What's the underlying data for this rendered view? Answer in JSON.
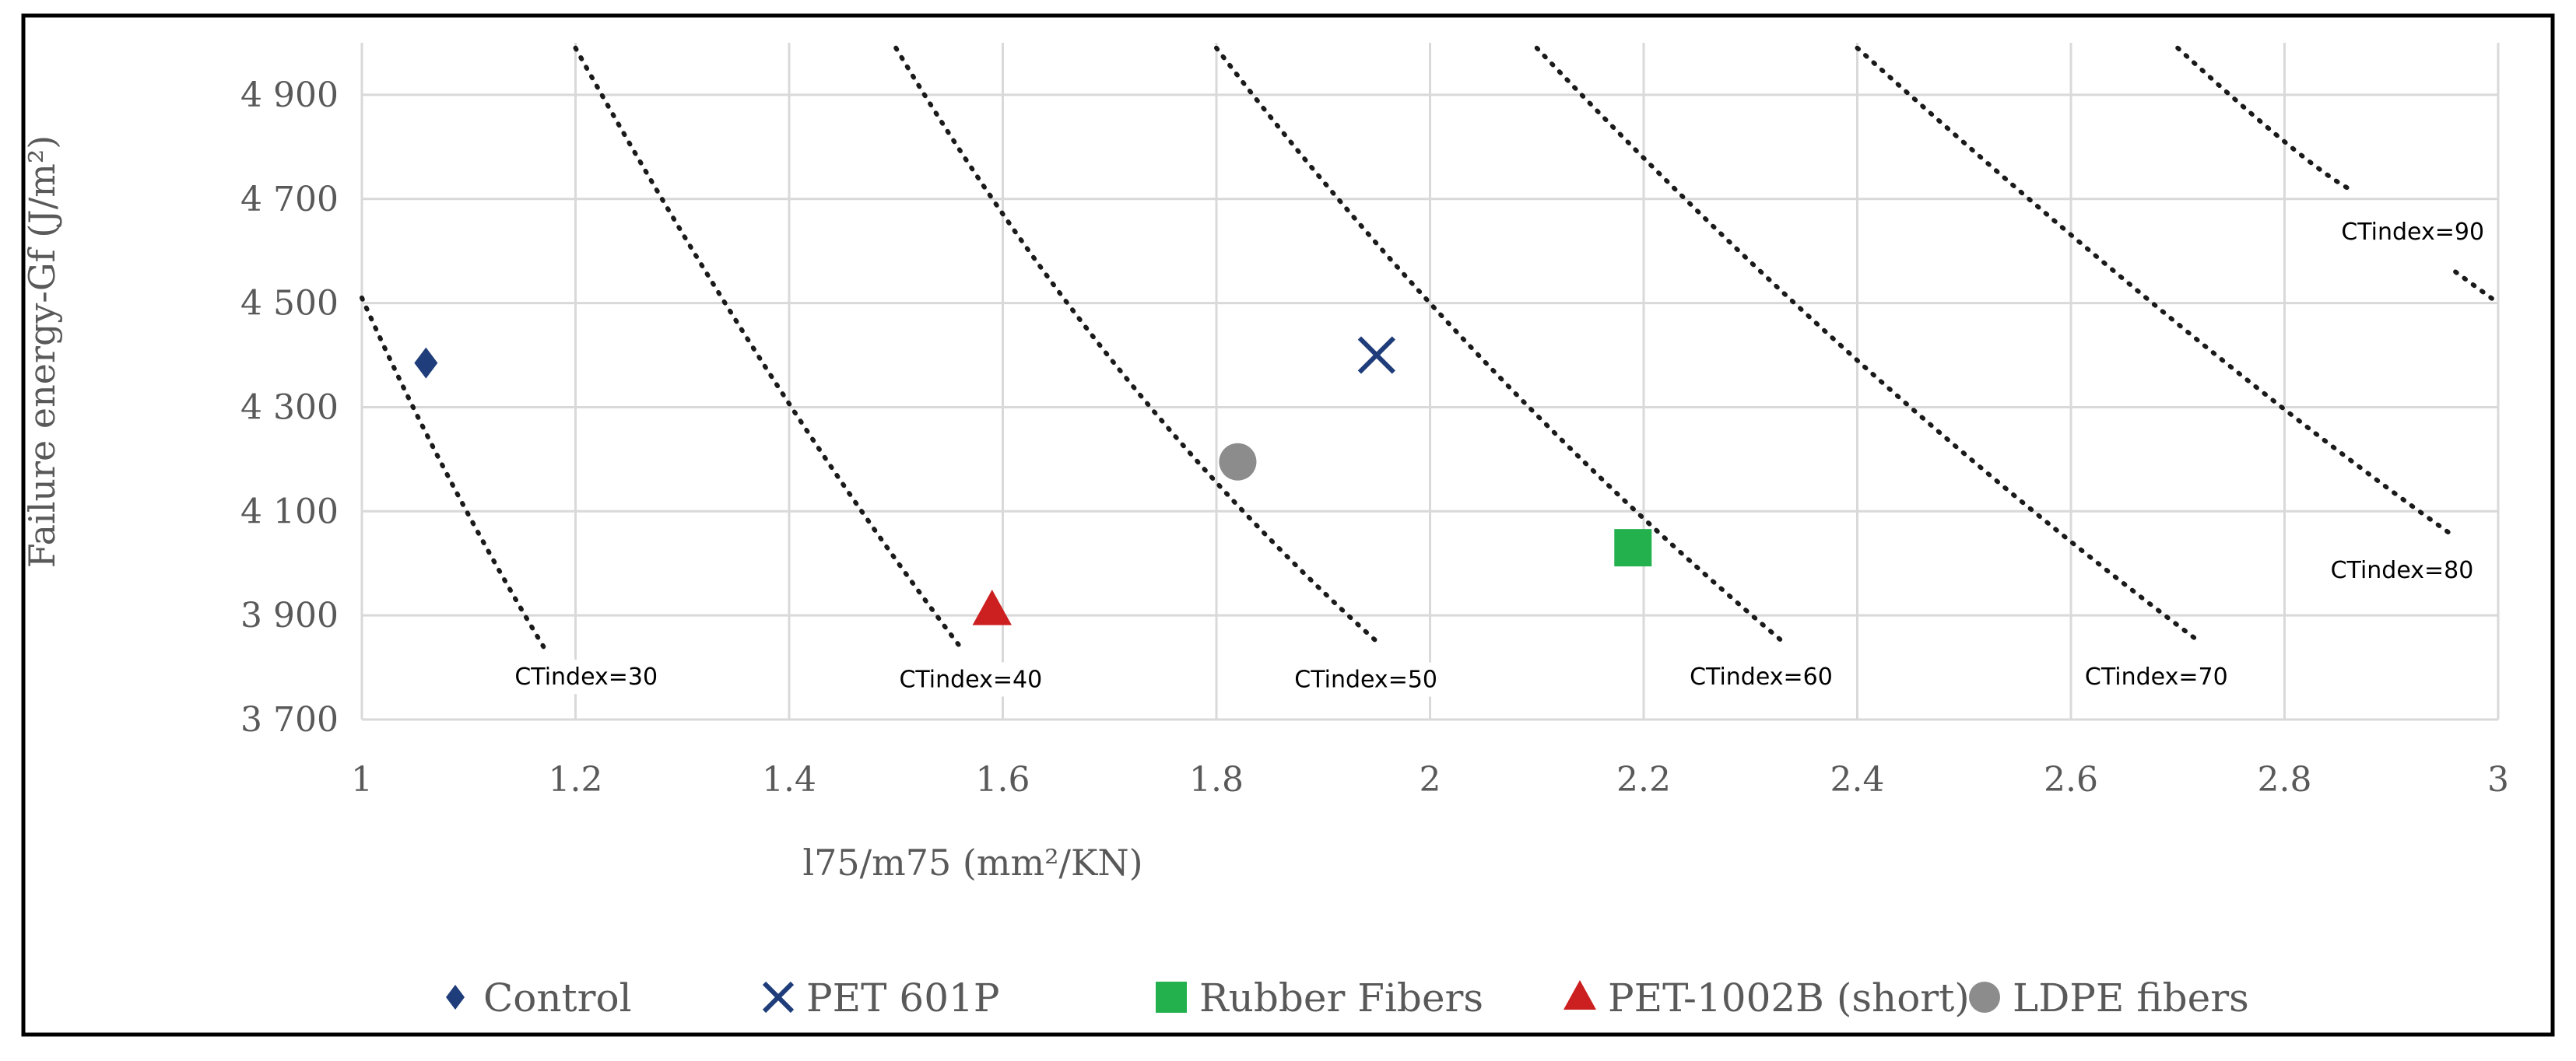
{
  "chart_data": {
    "type": "scatter",
    "title": "",
    "xlabel": "l75/m75 (mm²/KN)",
    "ylabel": "Failure energy-Gf (J/m²)",
    "xlim": [
      1,
      3
    ],
    "ylim": [
      3700,
      5000
    ],
    "grid": true,
    "legend_position": "bottom",
    "x_ticks": [
      "1",
      "1.2",
      "1.4",
      "1.6",
      "1.8",
      "2",
      "2.2",
      "2.4",
      "2.6",
      "2.8",
      "3"
    ],
    "x_tick_values": [
      1,
      1.2,
      1.4,
      1.6,
      1.8,
      2,
      2.2,
      2.4,
      2.6,
      2.8,
      3
    ],
    "y_ticks": [
      "3 700",
      "3 900",
      "4 100",
      "4 300",
      "4 500",
      "4 700",
      "4 900"
    ],
    "y_tick_values": [
      3700,
      3900,
      4100,
      4300,
      4500,
      4700,
      4900
    ],
    "series": [
      {
        "name": "Control",
        "marker": "diamond",
        "color": "#1f3d7a",
        "x": 1.06,
        "y": 4385
      },
      {
        "name": "PET 601P",
        "marker": "x",
        "color": "#1f3d7a",
        "x": 1.95,
        "y": 4400
      },
      {
        "name": "Rubber Fibers",
        "marker": "square",
        "color": "#22b14c",
        "x": 2.19,
        "y": 4030
      },
      {
        "name": "PET-1002B (short)",
        "marker": "triangle",
        "color": "#cc1f1f",
        "x": 1.59,
        "y": 3910
      },
      {
        "name": "LDPE fibers",
        "marker": "circle",
        "color": "#8c8c8c",
        "x": 1.82,
        "y": 4195
      }
    ],
    "ct_curves": [
      {
        "label": "CTindex=30",
        "points": [
          [
            1.0,
            4510
          ],
          [
            1.08,
            4170
          ],
          [
            1.17,
            3840
          ]
        ]
      },
      {
        "label": "CTindex=40",
        "points": [
          [
            1.2,
            4990
          ],
          [
            1.38,
            4370
          ],
          [
            1.56,
            3840
          ]
        ]
      },
      {
        "label": "CTindex=50",
        "points": [
          [
            1.5,
            4990
          ],
          [
            1.71,
            4370
          ],
          [
            1.95,
            3850
          ]
        ]
      },
      {
        "label": "CTindex=60",
        "points": [
          [
            1.8,
            4990
          ],
          [
            2.05,
            4390
          ],
          [
            2.33,
            3850
          ]
        ]
      },
      {
        "label": "CTindex=70",
        "points": [
          [
            2.1,
            4990
          ],
          [
            2.4,
            4390
          ],
          [
            2.72,
            3850
          ]
        ]
      },
      {
        "label": "CTindex=80",
        "points": [
          [
            2.4,
            4990
          ],
          [
            2.7,
            4460
          ],
          [
            2.96,
            4050
          ]
        ]
      },
      {
        "label": "CTindex=90",
        "points": [
          [
            2.7,
            4990
          ],
          [
            2.8,
            4810
          ],
          [
            2.86,
            4720
          ]
        ]
      }
    ],
    "ct_90_tail": [
      [
        2.96,
        4560
      ],
      [
        3.0,
        4500
      ]
    ],
    "ct_labels": [
      {
        "text": "CTindex=30",
        "x": 1.21,
        "y": 3770
      },
      {
        "text": "CTindex=40",
        "x": 1.57,
        "y": 3765
      },
      {
        "text": "CTindex=50",
        "x": 1.94,
        "y": 3765
      },
      {
        "text": "CTindex=60",
        "x": 2.31,
        "y": 3770
      },
      {
        "text": "CTindex=70",
        "x": 2.68,
        "y": 3770
      },
      {
        "text": "CTindex=80",
        "x": 2.91,
        "y": 3975
      },
      {
        "text": "CTindex=90",
        "x": 2.92,
        "y": 4625
      }
    ]
  }
}
